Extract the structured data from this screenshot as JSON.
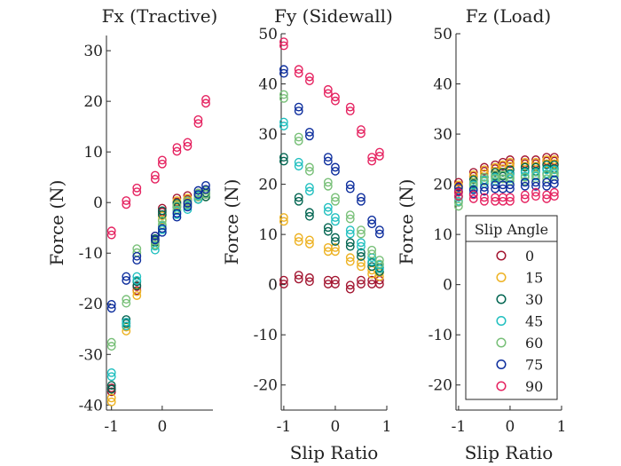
{
  "chart_data": [
    {
      "type": "scatter",
      "title": "Fx (Tractive)",
      "xlabel": "",
      "ylabel": "Force (N)",
      "xlim": [
        -1.1,
        1.0
      ],
      "ylim": [
        -41,
        33
      ],
      "xticks": [
        -1,
        0
      ],
      "yticks": [
        -40,
        -30,
        -20,
        -10,
        0,
        10,
        20,
        30
      ],
      "x": [
        -1.0,
        -0.71,
        -0.5,
        -0.14,
        0.0,
        0.29,
        0.5,
        0.71,
        0.86
      ],
      "series": [
        {
          "name": "0",
          "color": "#a2142f",
          "values": [
            -37,
            -24,
            -17,
            -7,
            -1.5,
            0.5,
            1,
            1.5,
            2
          ]
        },
        {
          "name": "15",
          "color": "#edb120",
          "values": [
            -39,
            -25,
            -18,
            -8,
            -3,
            0,
            0.5,
            1,
            1.5
          ]
        },
        {
          "name": "30",
          "color": "#006450",
          "values": [
            -36.5,
            -23.5,
            -16,
            -7.5,
            -2,
            -0.5,
            0,
            1,
            1.5
          ]
        },
        {
          "name": "45",
          "color": "#1fbfbf",
          "values": [
            -34,
            -24,
            -15,
            -9,
            -5,
            -2,
            -1,
            1,
            2
          ]
        },
        {
          "name": "60",
          "color": "#77bf77",
          "values": [
            -28,
            -19.5,
            -9.5,
            -8,
            -4,
            -1,
            0,
            1.5,
            2
          ]
        },
        {
          "name": "75",
          "color": "#0b2c9c",
          "values": [
            -20.5,
            -15,
            -11,
            -7,
            -5.5,
            -2.5,
            -0.5,
            2,
            3
          ]
        },
        {
          "name": "90",
          "color": "#e5215f",
          "values": [
            -6,
            0,
            2.5,
            5,
            8,
            10.5,
            11.5,
            16,
            20
          ]
        }
      ]
    },
    {
      "type": "scatter",
      "title": "Fy (Sidewall)",
      "xlabel": "Slip Ratio",
      "ylabel": "Force (N)",
      "xlim": [
        -1.05,
        1.0
      ],
      "ylim": [
        -25,
        50
      ],
      "xticks": [
        -1,
        0,
        1
      ],
      "yticks": [
        -20,
        -10,
        0,
        10,
        20,
        30,
        40,
        50
      ],
      "x": [
        -1.0,
        -0.71,
        -0.5,
        -0.14,
        0.0,
        0.29,
        0.5,
        0.71,
        0.86
      ],
      "series": [
        {
          "name": "0",
          "color": "#a2142f",
          "values": [
            0.5,
            1.5,
            1,
            0.5,
            0.5,
            -0.5,
            0.5,
            0.5,
            0.5
          ]
        },
        {
          "name": "15",
          "color": "#edb120",
          "values": [
            13,
            9,
            8.5,
            7,
            7,
            5,
            4,
            2.5,
            2
          ]
        },
        {
          "name": "30",
          "color": "#006450",
          "values": [
            25,
            17,
            14,
            11,
            9,
            8,
            6,
            4,
            3
          ]
        },
        {
          "name": "45",
          "color": "#1fbfbf",
          "values": [
            32,
            24,
            19,
            15,
            13,
            10.5,
            8,
            5,
            3.5
          ]
        },
        {
          "name": "60",
          "color": "#77bf77",
          "values": [
            37.5,
            29,
            23,
            20,
            17,
            13.5,
            10.5,
            6.5,
            4.5
          ]
        },
        {
          "name": "75",
          "color": "#0b2c9c",
          "values": [
            42.5,
            35,
            30,
            25,
            23,
            19.5,
            17,
            12.5,
            10.5
          ]
        },
        {
          "name": "90",
          "color": "#e5215f",
          "values": [
            48,
            42.5,
            41,
            38.5,
            37,
            35,
            30.5,
            25,
            26
          ]
        }
      ]
    },
    {
      "type": "scatter",
      "title": "Fz (Load)",
      "xlabel": "Slip Ratio",
      "ylabel": "Force (N)",
      "xlim": [
        -1.05,
        1.0
      ],
      "ylim": [
        -25,
        50
      ],
      "xticks": [
        -1,
        0,
        1
      ],
      "yticks": [
        -20,
        -10,
        0,
        10,
        20,
        30,
        40,
        50
      ],
      "legend": {
        "title": "Slip Angle",
        "position": "bottom-right"
      },
      "x": [
        -1.0,
        -0.71,
        -0.5,
        -0.29,
        -0.14,
        0.0,
        0.29,
        0.5,
        0.71,
        0.86
      ],
      "series": [
        {
          "name": "0",
          "color": "#a2142f",
          "values": [
            20,
            22,
            23,
            23.5,
            24,
            24.5,
            24.5,
            24.5,
            25,
            25
          ]
        },
        {
          "name": "15",
          "color": "#edb120",
          "values": [
            19.5,
            21.5,
            22.5,
            23,
            23.5,
            24,
            24,
            24,
            24.5,
            24.5
          ]
        },
        {
          "name": "30",
          "color": "#006450",
          "values": [
            18,
            20.5,
            21,
            22,
            22,
            22.5,
            23,
            23,
            23.5,
            23.5
          ]
        },
        {
          "name": "45",
          "color": "#1fbfbf",
          "values": [
            17,
            19.5,
            20.5,
            21,
            21.5,
            21.5,
            22,
            22,
            22.5,
            22.5
          ]
        },
        {
          "name": "60",
          "color": "#77bf77",
          "values": [
            16,
            20,
            21,
            21.5,
            21.5,
            21,
            21,
            21.5,
            21.5,
            22
          ]
        },
        {
          "name": "75",
          "color": "#0b2c9c",
          "values": [
            19,
            18.5,
            19,
            19.5,
            19.5,
            19.5,
            20,
            20,
            20,
            20.5
          ]
        },
        {
          "name": "90",
          "color": "#e5215f",
          "values": [
            18,
            17.5,
            17,
            17,
            17,
            17,
            17.5,
            18,
            17.5,
            18
          ]
        }
      ]
    }
  ]
}
